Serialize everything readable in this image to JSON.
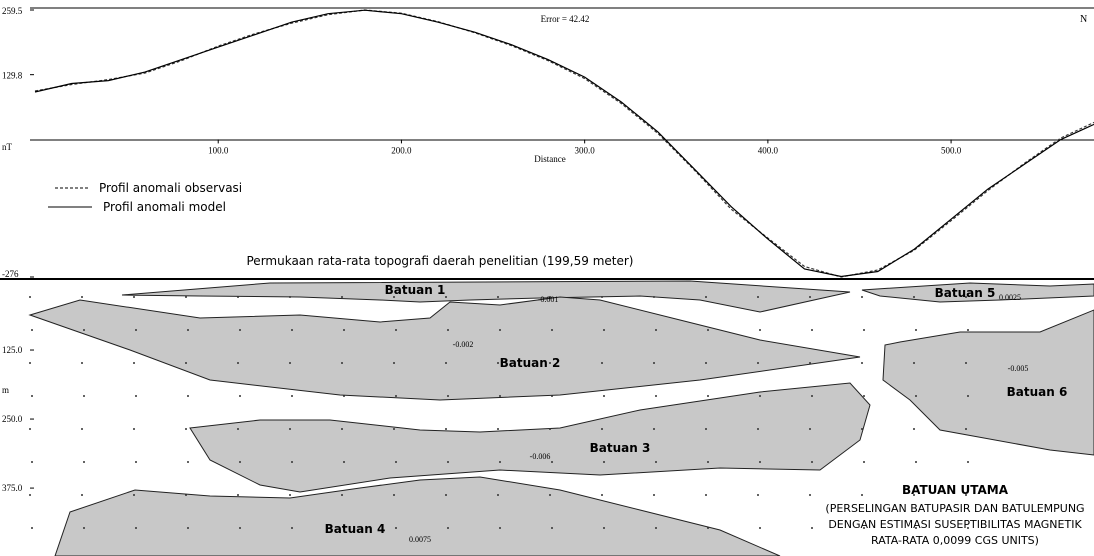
{
  "chart_data": [
    {
      "type": "line",
      "annotation": "Error = 42.42",
      "corner_label": "N",
      "xlabel": "Distance",
      "ylabel": "nT",
      "caption": "Permukaan rata-rata topografi daerah penelitian (199,59 meter)",
      "x": [
        0,
        20,
        40,
        60,
        80,
        100,
        120,
        140,
        160,
        180,
        200,
        220,
        240,
        260,
        280,
        300,
        320,
        340,
        360,
        380,
        400,
        420,
        440,
        460,
        480,
        500,
        520,
        540,
        560,
        578
      ],
      "series": [
        {
          "name": "Profil anomali observasi",
          "color": "#333333",
          "dash": true,
          "values": [
            97,
            110,
            120,
            133,
            158,
            187,
            212,
            233,
            250,
            259.5,
            253,
            236,
            214,
            188,
            158,
            122,
            72,
            12,
            -62,
            -140,
            -198,
            -255,
            -276,
            -262,
            -222,
            -163,
            -103,
            -48,
            3,
            34
          ]
        },
        {
          "name": "Profil anomali model",
          "color": "#000000",
          "dash": false,
          "values": [
            95,
            112,
            118,
            135,
            160,
            185,
            210,
            235,
            252,
            259,
            252,
            235,
            215,
            190,
            160,
            125,
            75,
            15,
            -60,
            -135,
            -200,
            -260,
            -275,
            -265,
            -220,
            -160,
            -100,
            -50,
            0,
            30
          ]
        }
      ],
      "xlim": [
        0,
        578
      ],
      "ylim": [
        -276,
        259.5
      ],
      "xticks": [
        {
          "value": 100,
          "label": "100.0"
        },
        {
          "value": 200,
          "label": "200.0"
        },
        {
          "value": 300,
          "label": "300.0"
        },
        {
          "value": 400,
          "label": "400.0"
        },
        {
          "value": 500,
          "label": "500.0"
        }
      ],
      "yticks": [
        -276,
        129.8,
        259.5
      ]
    },
    {
      "type": "section",
      "ylabel": "m",
      "ylim": [
        0,
        498
      ],
      "yticks": [
        {
          "value": 125,
          "label": "125.0"
        },
        {
          "value": 250,
          "label": "250.0"
        },
        {
          "value": 375,
          "label": "375.0"
        }
      ],
      "bodies": [
        {
          "name": "Batuan 1",
          "susceptibility": "-0.001"
        },
        {
          "name": "Batuan 2",
          "susceptibility": "-0.002"
        },
        {
          "name": "Batuan 3",
          "susceptibility": "-0.006"
        },
        {
          "name": "Batuan 4",
          "susceptibility": "0.0075"
        },
        {
          "name": "Batuan 5",
          "susceptibility": "0.0025"
        },
        {
          "name": "Batuan 6",
          "susceptibility": "-0.005"
        }
      ],
      "main_rock": {
        "title": "BATUAN UTAMA",
        "lines": [
          "(PERSELINGAN BATUPASIR DAN BATULEMPUNG",
          "DENGAN ESTIMASI SUSEPTIBILITAS MAGNETIK",
          "RATA-RATA 0,0099 CGS UNITS)"
        ]
      }
    }
  ]
}
